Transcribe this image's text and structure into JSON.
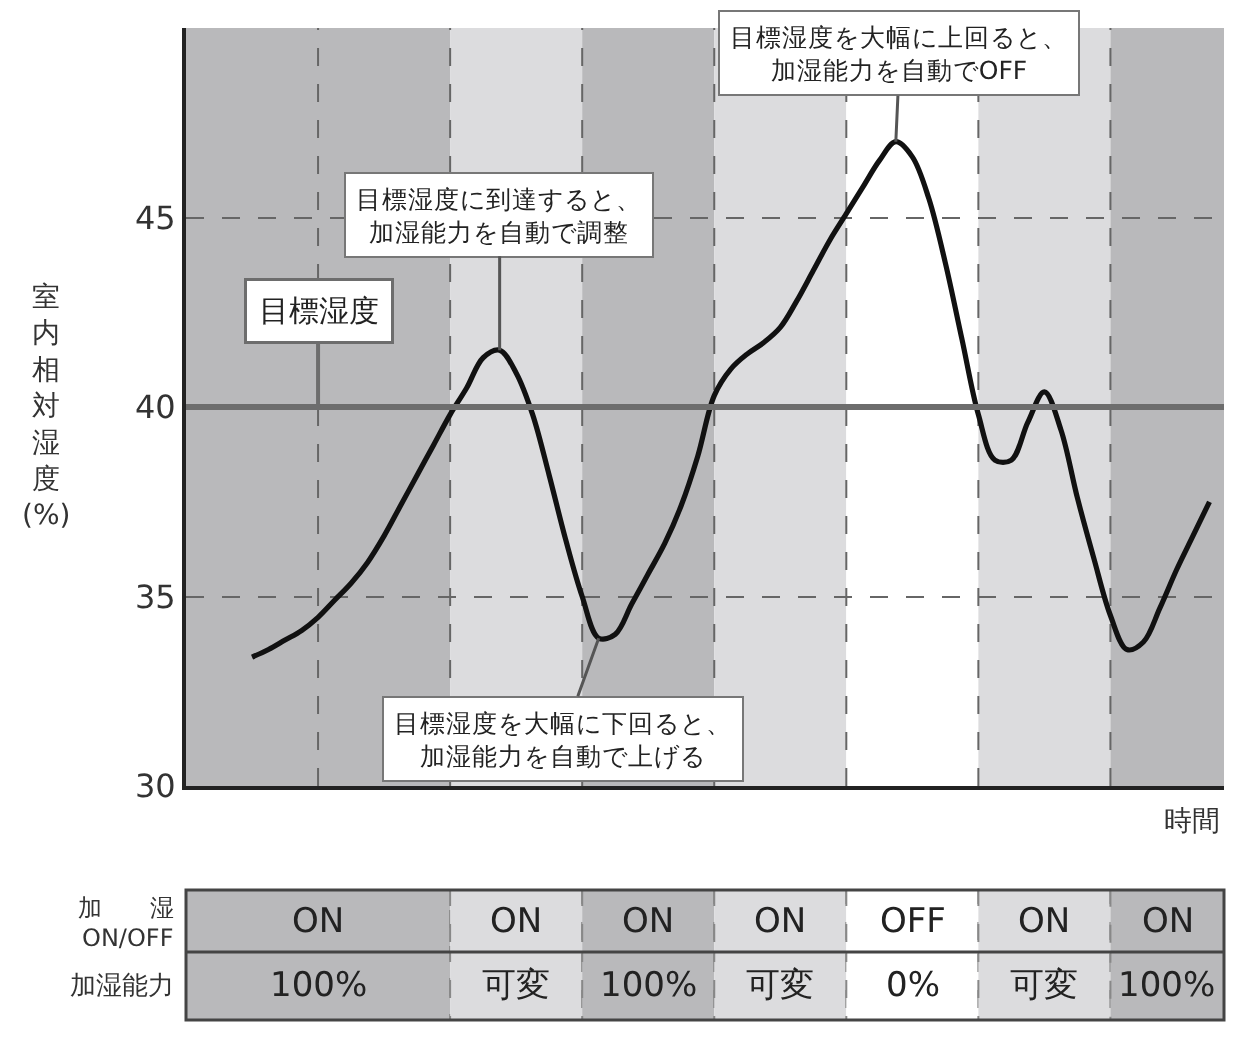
{
  "chart_data": {
    "type": "line",
    "ylabel": "室内相対湿度(%)",
    "xlabel": "時間",
    "categories": [
      null,
      null,
      null,
      null,
      null,
      null,
      null,
      null,
      null,
      null,
      null,
      null,
      null,
      null,
      null,
      null,
      null,
      null,
      null,
      null,
      null,
      null,
      null,
      null,
      null,
      null,
      null,
      null,
      null,
      null,
      null,
      null,
      null,
      null,
      null,
      null,
      null,
      null,
      null,
      null,
      null,
      null,
      null,
      null,
      null,
      null,
      null,
      null,
      null,
      null,
      null,
      null,
      null,
      null,
      null,
      null,
      null,
      null,
      null
    ],
    "values": [
      33.4,
      33.6,
      33.85,
      34.1,
      34.45,
      34.9,
      35.35,
      35.9,
      36.6,
      37.4,
      38.2,
      39.0,
      39.8,
      40.5,
      41.3,
      41.5,
      40.9,
      39.8,
      38.2,
      36.5,
      35.0,
      33.9,
      34.0,
      34.8,
      35.6,
      36.4,
      37.4,
      38.7,
      40.3,
      41.0,
      41.4,
      41.7,
      42.1,
      42.8,
      43.6,
      44.4,
      45.1,
      45.8,
      46.5,
      47.0,
      46.6,
      45.5,
      43.8,
      41.8,
      39.8,
      38.6,
      38.6,
      39.6,
      40.4,
      39.4,
      37.6,
      36.0,
      34.5,
      33.6,
      33.8,
      34.7,
      35.7,
      36.6,
      37.5
    ],
    "color": "#111111",
    "line_style": "solid",
    "marker": "none",
    "ylim": [
      30,
      50
    ],
    "yticks": [
      30,
      35,
      40,
      45
    ],
    "tick_labels": "y",
    "grid": true,
    "legend": false,
    "ref_lines": [
      {
        "axis": "y",
        "value": 40,
        "label": "目標湿度",
        "color": "#6d6d6d",
        "line_style": "solid"
      }
    ],
    "annotations": [
      {
        "text": "目標湿度に到達すると、加湿能力を自動で調整",
        "y": 41.5
      },
      {
        "text": "目標湿度を大幅に上回ると、加湿能力を自動でOFF",
        "y": 47.0
      },
      "目標湿度を大幅に下回ると、加湿能力を自動で上げる",
      "加　　湿",
      "ON/OFF",
      "加湿能力",
      "ON",
      "ON",
      "ON",
      "ON",
      "OFF",
      "ON",
      "ON",
      "100%",
      "可変",
      "100%",
      "可変",
      "0%",
      "可変",
      "100%"
    ]
  }
}
